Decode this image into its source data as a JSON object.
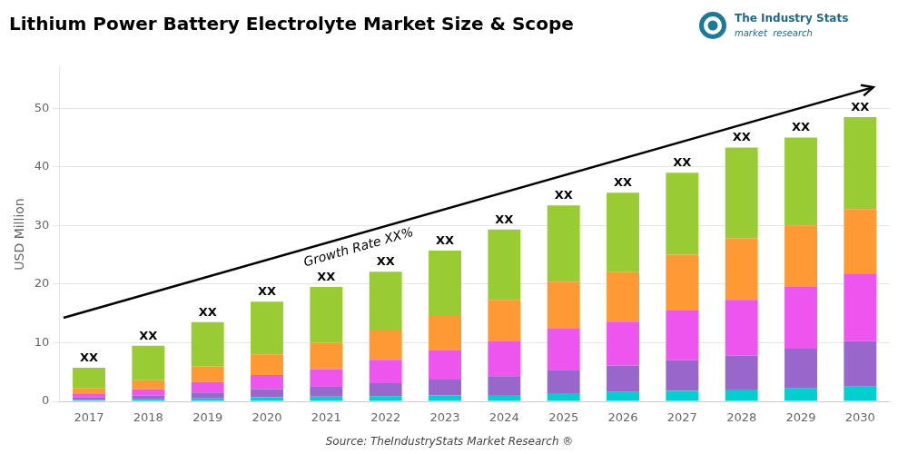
{
  "chart_data": {
    "type": "bar",
    "title": "Lithium Power Battery Electrolyte Market Size & Scope",
    "ylabel": "USD Million",
    "source": "Source: TheIndustryStats Market Research ®",
    "annotations": [
      "Growth Rate XX%"
    ],
    "logo_texts": [
      "The Industry Stats",
      "market  research"
    ],
    "bar_labels": [
      "XX",
      "XX",
      "XX",
      "XX",
      "XX",
      "XX",
      "XX",
      "XX",
      "XX",
      "XX",
      "XX",
      "XX",
      "XX",
      "XX"
    ],
    "categories": [
      "2017",
      "2018",
      "2019",
      "2020",
      "2021",
      "2022",
      "2023",
      "2024",
      "2025",
      "2026",
      "2027",
      "2028",
      "2029",
      "2030"
    ],
    "stacked": true,
    "series": [
      {
        "color": "#00CFCF",
        "values": [
          0.25,
          0.35,
          0.5,
          0.7,
          0.8,
          0.9,
          1.0,
          1.1,
          1.4,
          1.6,
          1.8,
          2.0,
          2.2,
          2.5
        ]
      },
      {
        "color": "#9966CC",
        "values": [
          0.4,
          0.6,
          1.0,
          1.4,
          1.8,
          2.2,
          2.7,
          3.2,
          4.0,
          4.5,
          5.2,
          5.8,
          6.8,
          7.8
        ]
      },
      {
        "color": "#EE55EE",
        "values": [
          0.7,
          1.1,
          1.8,
          2.4,
          2.9,
          4.0,
          5.0,
          6.0,
          7.0,
          7.5,
          8.5,
          9.5,
          10.5,
          11.5
        ]
      },
      {
        "color": "#FF9933",
        "values": [
          0.85,
          1.55,
          2.7,
          3.5,
          4.5,
          5.0,
          6.0,
          7.0,
          8.0,
          8.5,
          9.5,
          10.5,
          10.5,
          11.0
        ]
      },
      {
        "color": "#99CC33",
        "values": [
          3.55,
          5.9,
          7.5,
          9.0,
          9.5,
          10.0,
          11.0,
          12.0,
          13.0,
          13.5,
          14.0,
          15.5,
          15.0,
          15.7
        ]
      }
    ],
    "ylim": [
      0,
      57
    ],
    "yticks": [
      0,
      10,
      20,
      30,
      40,
      50
    ],
    "grid": true
  }
}
